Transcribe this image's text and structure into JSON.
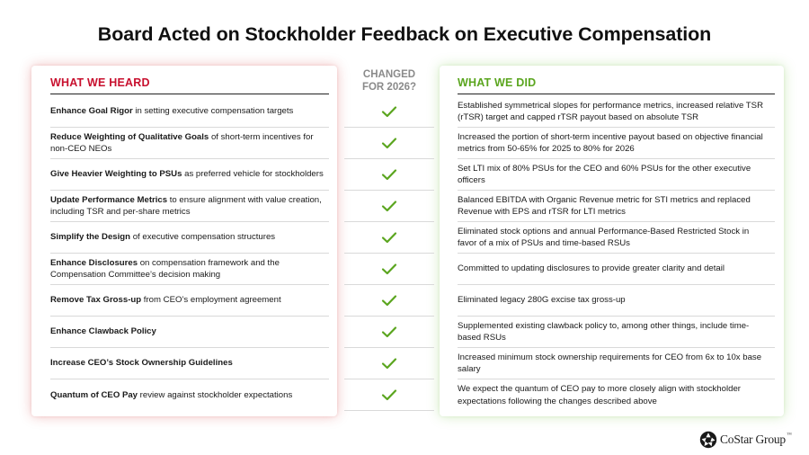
{
  "title": "Board Acted on Stockholder Feedback on Executive Compensation",
  "headers": {
    "heard": "WHAT WE HEARD",
    "changed_line1": "CHANGED",
    "changed_line2": "FOR 2026?",
    "did": "WHAT WE DID"
  },
  "colors": {
    "heard_accent": "#c8102e",
    "did_accent": "#5aa51e",
    "check": "#5aa51e"
  },
  "rows": [
    {
      "heard_bold": "Enhance Goal Rigor",
      "heard_rest": " in setting executive compensation targets",
      "changed": "check-icon",
      "did": "Established symmetrical slopes for performance metrics, increased relative TSR (rTSR) target and capped rTSR payout based on absolute TSR"
    },
    {
      "heard_bold": "Reduce Weighting of Qualitative Goals",
      "heard_rest": " of short-term incentives for non-CEO NEOs",
      "changed": "check-icon",
      "did": "Increased the portion of short-term incentive payout based on objective financial metrics from 50-65% for 2025 to 80% for 2026"
    },
    {
      "heard_bold": "Give Heavier Weighting to PSUs",
      "heard_rest": " as preferred vehicle for stockholders",
      "changed": "check-icon",
      "did": "Set LTI mix of 80% PSUs for the CEO and 60% PSUs for the other executive officers"
    },
    {
      "heard_bold": "Update Performance Metrics",
      "heard_rest": " to ensure alignment with value creation, including TSR and per-share metrics",
      "changed": "check-icon",
      "did": "Balanced EBITDA with Organic Revenue metric for STI metrics and replaced Revenue with EPS and rTSR for LTI metrics"
    },
    {
      "heard_bold": "Simplify the Design",
      "heard_rest": " of executive compensation structures",
      "changed": "check-icon",
      "did": "Eliminated stock options and annual Performance-Based Restricted Stock in favor of a mix of PSUs and time-based RSUs"
    },
    {
      "heard_bold": "Enhance Disclosures",
      "heard_rest": " on compensation framework and the Compensation Committee’s decision making",
      "changed": "check-icon",
      "did": "Committed to updating disclosures to provide greater clarity and detail"
    },
    {
      "heard_bold": "Remove Tax Gross-up",
      "heard_rest": " from CEO’s employment agreement",
      "changed": "check-icon",
      "did": "Eliminated legacy 280G excise tax gross-up"
    },
    {
      "heard_bold": "Enhance Clawback Policy",
      "heard_rest": "",
      "changed": "check-icon",
      "did": "Supplemented existing clawback policy to, among other things, include time-based RSUs"
    },
    {
      "heard_bold": "Increase CEO’s Stock Ownership Guidelines",
      "heard_rest": "",
      "changed": "check-icon",
      "did": "Increased minimum stock ownership requirements for CEO from 6x to 10x base salary"
    },
    {
      "heard_bold": "Quantum of CEO Pay",
      "heard_rest": " review against stockholder expectations",
      "changed": "check-icon",
      "did": "We expect the quantum of CEO pay to more closely align with stockholder expectations following the changes described above"
    }
  ],
  "logo": {
    "text": "CoStar Group",
    "tm": "™"
  }
}
